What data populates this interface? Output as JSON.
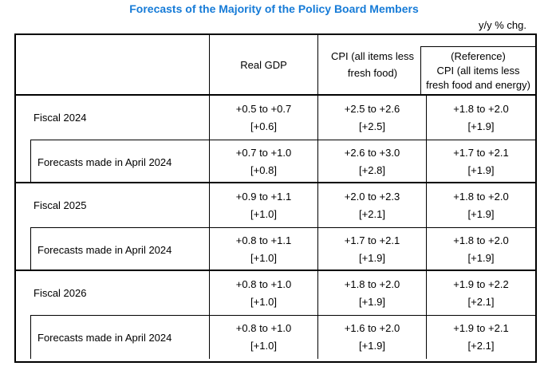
{
  "page": {
    "title": "Forecasts of the Majority of the Policy Board Members",
    "unit_label": "y/y % chg.",
    "title_color": "#167bd7",
    "border_color": "#000000",
    "background_color": "#ffffff"
  },
  "table": {
    "header": {
      "row_label": "",
      "real_gdp": "Real GDP",
      "cpi_lines": [
        "CPI (all items less",
        "fresh food)"
      ],
      "reference_lines": [
        "(Reference)",
        "CPI (all items less",
        "fresh food and energy)"
      ]
    },
    "rows": [
      {
        "label": "Fiscal 2024",
        "indented": false,
        "gdp": {
          "range": "+0.5 to +0.7",
          "median": "[+0.6]"
        },
        "cpi": {
          "range": "+2.5 to +2.6",
          "median": "[+2.5]"
        },
        "ref": {
          "range": "+1.8 to +2.0",
          "median": "[+1.9]"
        }
      },
      {
        "label": "Forecasts made in April 2024",
        "indented": true,
        "gdp": {
          "range": "+0.7 to +1.0",
          "median": "[+0.8]"
        },
        "cpi": {
          "range": "+2.6 to +3.0",
          "median": "[+2.8]"
        },
        "ref": {
          "range": "+1.7 to +2.1",
          "median": "[+1.9]"
        }
      },
      {
        "label": "Fiscal 2025",
        "indented": false,
        "gdp": {
          "range": "+0.9 to +1.1",
          "median": "[+1.0]"
        },
        "cpi": {
          "range": "+2.0 to +2.3",
          "median": "[+2.1]"
        },
        "ref": {
          "range": "+1.8 to +2.0",
          "median": "[+1.9]"
        }
      },
      {
        "label": "Forecasts made in April 2024",
        "indented": true,
        "gdp": {
          "range": "+0.8 to +1.1",
          "median": "[+1.0]"
        },
        "cpi": {
          "range": "+1.7 to +2.1",
          "median": "[+1.9]"
        },
        "ref": {
          "range": "+1.8 to +2.0",
          "median": "[+1.9]"
        }
      },
      {
        "label": "Fiscal 2026",
        "indented": false,
        "gdp": {
          "range": "+0.8 to +1.0",
          "median": "[+1.0]"
        },
        "cpi": {
          "range": "+1.8 to +2.0",
          "median": "[+1.9]"
        },
        "ref": {
          "range": "+1.9 to +2.2",
          "median": "[+2.1]"
        }
      },
      {
        "label": "Forecasts made in April 2024",
        "indented": true,
        "gdp": {
          "range": "+0.8 to +1.0",
          "median": "[+1.0]"
        },
        "cpi": {
          "range": "+1.6 to +2.0",
          "median": "[+1.9]"
        },
        "ref": {
          "range": "+1.9 to +2.1",
          "median": "[+2.1]"
        }
      }
    ]
  }
}
